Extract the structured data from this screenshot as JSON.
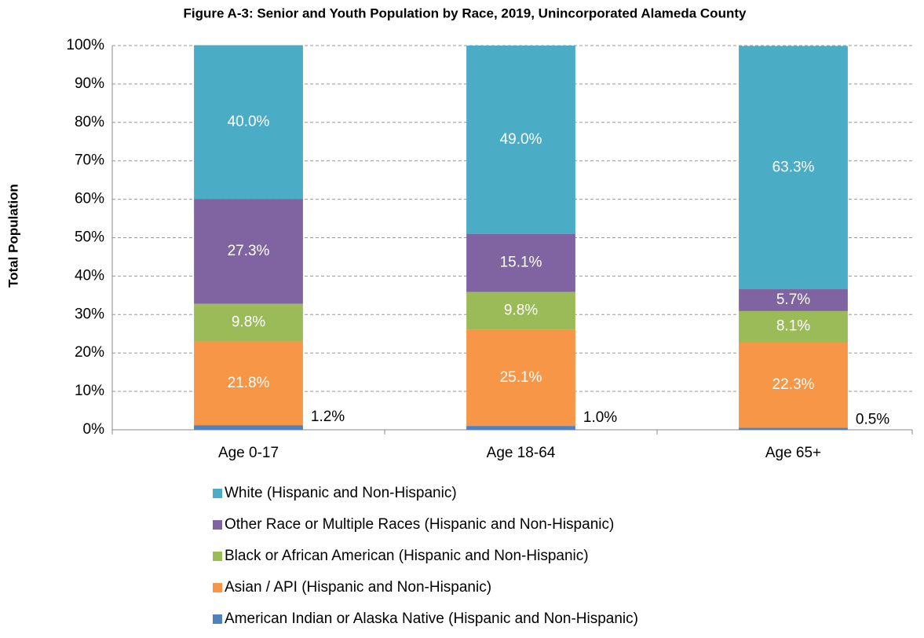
{
  "chart_data": {
    "type": "stacked_bar",
    "title": "Figure A-3: Senior and Youth Population by Race, 2019, Unincorporated Alameda County",
    "y_label": "Total Population",
    "categories": [
      "Age 0-17",
      "Age 18-64",
      "Age 65+"
    ],
    "series": [
      {
        "name": "American Indian or Alaska Native (Hispanic and Non-Hispanic)",
        "color": "#4f81bd",
        "values": [
          1.2,
          1.0,
          0.5
        ],
        "value_labels": [
          "1.2%",
          "1.0%",
          "0.5%"
        ]
      },
      {
        "name": "Asian / API (Hispanic and Non-Hispanic)",
        "color": "#f79646",
        "values": [
          21.8,
          25.1,
          22.3
        ],
        "value_labels": [
          "21.8%",
          "25.1%",
          "22.3%"
        ]
      },
      {
        "name": "Black or African American (Hispanic and Non-Hispanic)",
        "color": "#9bbb59",
        "values": [
          9.8,
          9.8,
          8.1
        ],
        "value_labels": [
          "9.8%",
          "9.8%",
          "8.1%"
        ]
      },
      {
        "name": "Other Race or Multiple Races (Hispanic and Non-Hispanic)",
        "color": "#8064a2",
        "values": [
          27.3,
          15.1,
          5.7
        ],
        "value_labels": [
          "27.3%",
          "15.1%",
          "5.7%"
        ]
      },
      {
        "name": "White (Hispanic and Non-Hispanic)",
        "color": "#4bacc6",
        "values": [
          40.0,
          49.0,
          63.3
        ],
        "value_labels": [
          "40.0%",
          "49.0%",
          "63.3%"
        ]
      }
    ],
    "ylim": [
      0,
      100
    ],
    "yticks": [
      {
        "value": 0,
        "label": "0%"
      },
      {
        "value": 10,
        "label": "10%"
      },
      {
        "value": 20,
        "label": "20%"
      },
      {
        "value": 30,
        "label": "30%"
      },
      {
        "value": 40,
        "label": "40%"
      },
      {
        "value": 50,
        "label": "50%"
      },
      {
        "value": 60,
        "label": "60%"
      },
      {
        "value": 70,
        "label": "70%"
      },
      {
        "value": 80,
        "label": "80%"
      },
      {
        "value": 90,
        "label": "90%"
      },
      {
        "value": 100,
        "label": "100%"
      }
    ],
    "grid": true
  }
}
